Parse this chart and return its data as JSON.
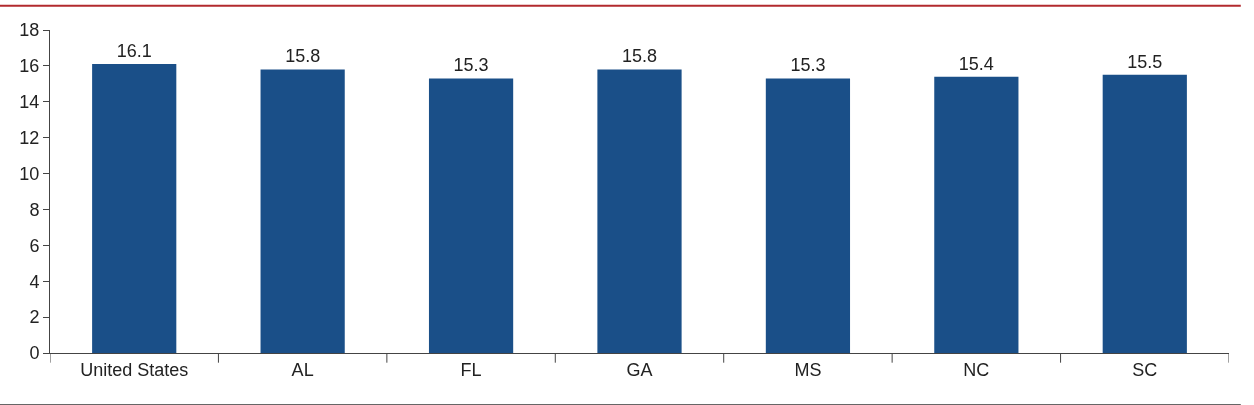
{
  "chart_data": {
    "type": "bar",
    "categories": [
      "United States",
      "AL",
      "FL",
      "GA",
      "MS",
      "NC",
      "SC"
    ],
    "values": [
      16.1,
      15.8,
      15.3,
      15.8,
      15.3,
      15.4,
      15.5
    ],
    "color": "#1a4f88",
    "ylim": [
      0,
      18
    ],
    "yticks": [
      0,
      2,
      4,
      6,
      8,
      10,
      12,
      14,
      16,
      18
    ],
    "legend": false,
    "data_labels": true
  }
}
